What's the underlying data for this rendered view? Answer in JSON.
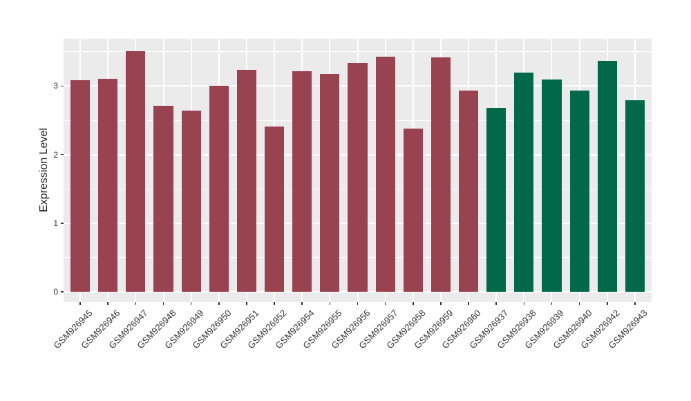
{
  "chart_data": {
    "type": "bar",
    "title": "",
    "xlabel": "",
    "ylabel": "Expression Level",
    "categories": [
      "GSM926945",
      "GSM926946",
      "GSM926947",
      "GSM926948",
      "GSM926949",
      "GSM926950",
      "GSM926951",
      "GSM926952",
      "GSM926954",
      "GSM926955",
      "GSM926956",
      "GSM926957",
      "GSM926958",
      "GSM926959",
      "GSM926960",
      "GSM926937",
      "GSM926938",
      "GSM926939",
      "GSM926940",
      "GSM926942",
      "GSM926943"
    ],
    "values": [
      3.09,
      3.11,
      3.51,
      2.71,
      2.64,
      3.0,
      3.24,
      2.41,
      3.22,
      3.18,
      3.34,
      3.43,
      2.38,
      3.42,
      2.93,
      2.68,
      3.2,
      3.1,
      2.93,
      3.37,
      2.79
    ],
    "groups": [
      "maroon",
      "maroon",
      "maroon",
      "maroon",
      "maroon",
      "maroon",
      "maroon",
      "maroon",
      "maroon",
      "maroon",
      "maroon",
      "maroon",
      "maroon",
      "maroon",
      "maroon",
      "green",
      "green",
      "green",
      "green",
      "green",
      "green"
    ],
    "colors": {
      "maroon": "#9A4350",
      "green": "#016948",
      "panel_bg": "#EBEBEB",
      "grid": "#FFFFFF",
      "axis_text": "#333333"
    },
    "yticks": [
      0,
      1,
      2,
      3
    ],
    "yticks_minor": [
      0.5,
      1.5,
      2.5,
      3.5
    ],
    "ylim": [
      -0.15,
      3.69
    ],
    "bar_width_ratio": 0.7,
    "grid": true,
    "legend_position": "none"
  }
}
